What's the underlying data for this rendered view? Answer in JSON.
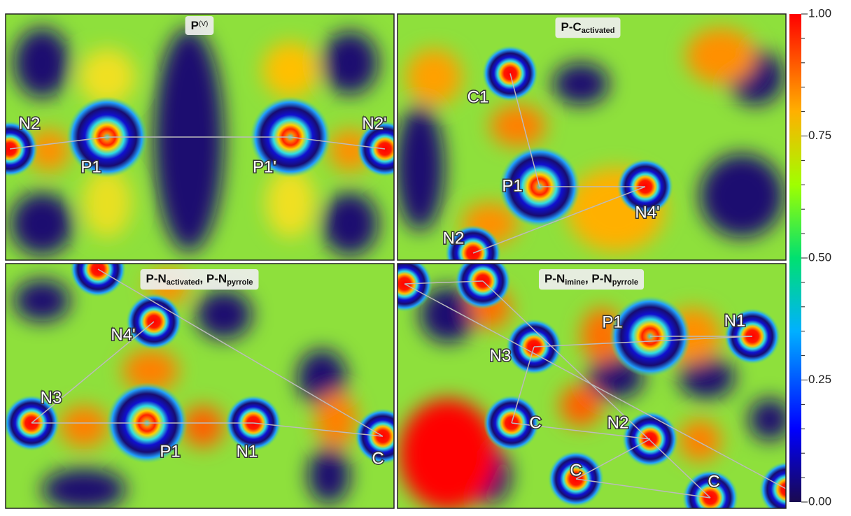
{
  "panels": [
    {
      "title": [
        {
          "text": "P",
          "sup": "(V)"
        }
      ],
      "atoms": [
        "N2",
        "P1",
        "P1'",
        "N2'"
      ]
    },
    {
      "title": [
        {
          "text": "P-C",
          "sub": "activated"
        }
      ],
      "atoms": [
        "C1",
        "P1",
        "N4'",
        "N2"
      ]
    },
    {
      "title": [
        {
          "text": "P-N",
          "sub": "activated"
        },
        {
          "text": ", P-N",
          "sub": "pyrrole"
        }
      ],
      "atoms": [
        "N4'",
        "N3",
        "P1",
        "N1",
        "C"
      ]
    },
    {
      "title": [
        {
          "text": "P-N",
          "sub": "imine"
        },
        {
          "text": ", P-N",
          "sub": "pyrrole"
        }
      ],
      "atoms": [
        "P1",
        "N1",
        "N3",
        "C",
        "N2",
        "C",
        "C"
      ]
    }
  ],
  "colorbar": {
    "range": [
      0,
      1
    ],
    "ticks": [
      {
        "value": 0,
        "label": "0.00"
      },
      {
        "value": 0.25,
        "label": "0.25"
      },
      {
        "value": 0.5,
        "label": "0.50"
      },
      {
        "value": 0.75,
        "label": "0.75"
      },
      {
        "value": 1,
        "label": "1.00"
      }
    ],
    "minor_ticks": [
      0.05,
      0.1,
      0.15,
      0.2,
      0.3,
      0.35,
      0.4,
      0.45,
      0.55,
      0.6,
      0.65,
      0.7,
      0.8,
      0.85,
      0.9,
      0.95
    ]
  }
}
